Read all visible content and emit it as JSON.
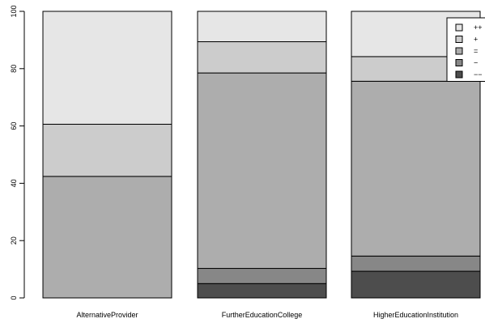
{
  "chart_data": {
    "type": "bar",
    "stacked": true,
    "title": "",
    "xlabel": "",
    "ylabel": "",
    "ylim": [
      0,
      100
    ],
    "yticks": [
      0,
      20,
      40,
      60,
      80,
      100
    ],
    "yticks_labels": [
      "0",
      "20",
      "40",
      "60",
      "80",
      "100"
    ],
    "categories": [
      "AlternativeProvider",
      "FurtherEducationCollege",
      "HigherEducationInstitution"
    ],
    "series": [
      {
        "name": "−−",
        "color": "#4d4d4d",
        "values": [
          0,
          5,
          9.3
        ]
      },
      {
        "name": "−",
        "color": "#878787",
        "values": [
          0,
          5.3,
          5.3
        ]
      },
      {
        "name": "=",
        "color": "#adadad",
        "values": [
          42.4,
          68.2,
          61
        ]
      },
      {
        "name": "+",
        "color": "#cccccc",
        "values": [
          18.2,
          10.9,
          8.6
        ]
      },
      {
        "name": "++",
        "color": "#e6e6e6",
        "values": [
          39.4,
          10.6,
          15.8
        ]
      }
    ],
    "legend": {
      "placement": "top-right",
      "order": [
        "++",
        "+",
        "=",
        "−",
        "−−"
      ]
    },
    "grid": false
  }
}
